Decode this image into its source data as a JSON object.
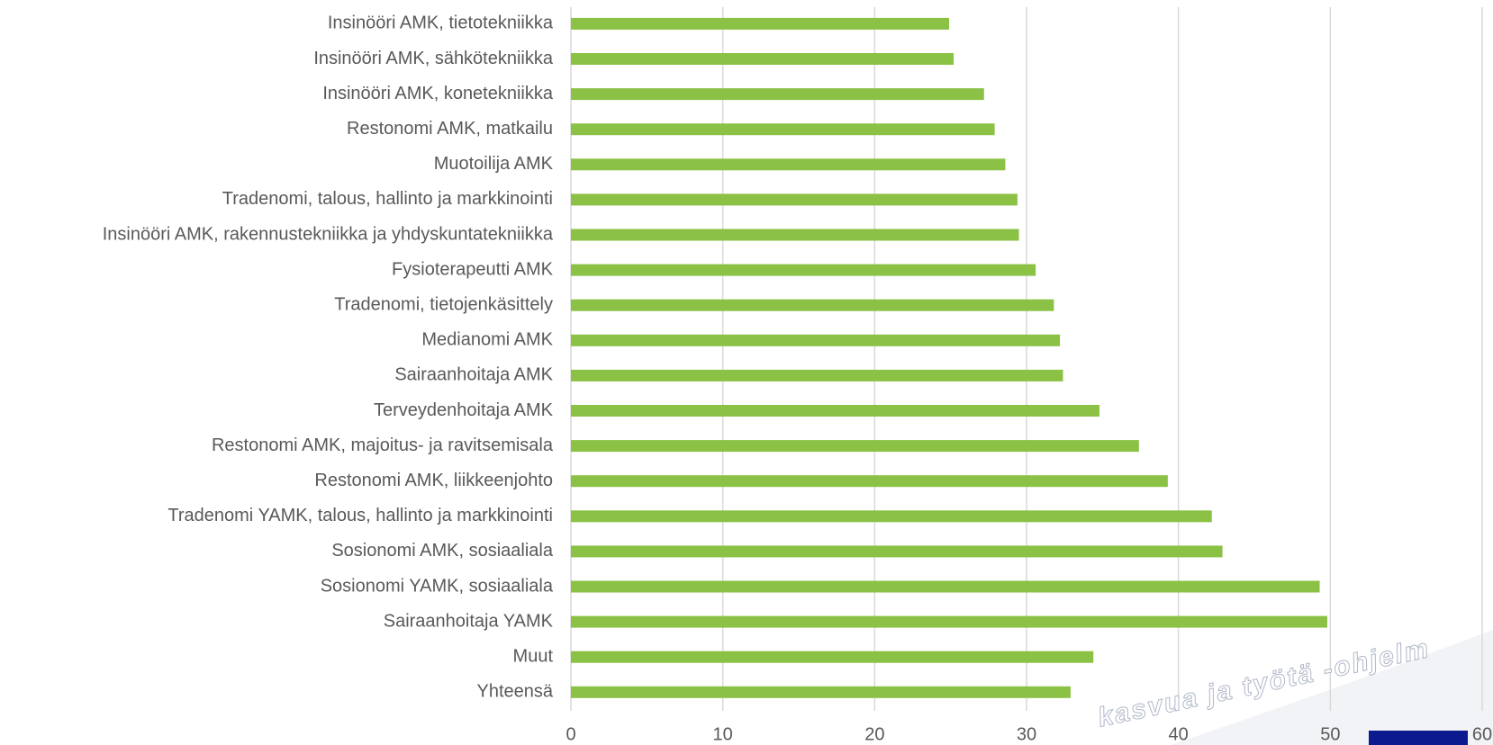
{
  "chart_data": {
    "type": "barh",
    "categories": [
      "Insinööri AMK, tietotekniikka",
      "Insinööri AMK, sähkötekniikka",
      "Insinööri AMK, konetekniikka",
      "Restonomi AMK, matkailu",
      "Muotoilija AMK",
      "Tradenomi, talous, hallinto ja markkinointi",
      "Insinööri AMK, rakennustekniikka ja yhdyskuntatekniikka",
      "Fysioterapeutti AMK",
      "Tradenomi, tietojenkäsittely",
      "Medianomi AMK",
      "Sairaanhoitaja AMK",
      "Terveydenhoitaja AMK",
      "Restonomi AMK, majoitus- ja ravitsemisala",
      "Restonomi AMK, liikkeenjohto",
      "Tradenomi YAMK, talous, hallinto ja markkinointi",
      "Sosionomi AMK, sosiaaliala",
      "Sosionomi YAMK, sosiaaliala",
      "Sairaanhoitaja YAMK",
      "Muut",
      "Yhteensä"
    ],
    "values": [
      24.9,
      25.2,
      27.2,
      27.9,
      28.6,
      29.4,
      29.5,
      30.6,
      31.8,
      32.2,
      32.4,
      34.8,
      37.4,
      39.3,
      42.2,
      42.9,
      49.3,
      49.8,
      34.4,
      32.9
    ],
    "color": "#8bc145",
    "xlim": [
      0,
      60
    ],
    "xticks": [
      0,
      10,
      20,
      30,
      40,
      50,
      60
    ],
    "grid": true,
    "watermark": "kasvua ja työtä -ohjelm"
  }
}
